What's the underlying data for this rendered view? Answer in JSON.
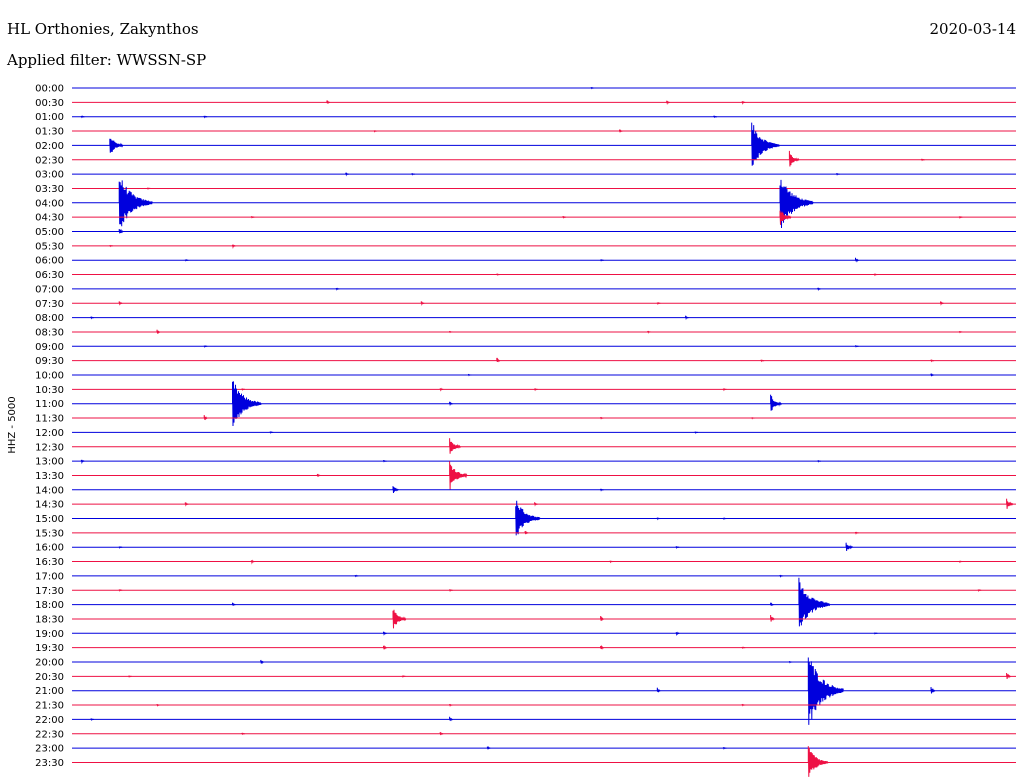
{
  "header": {
    "title": "HL Orthonies, Zakynthos",
    "date": "2020-03-14",
    "filter": "Applied filter: WWSSN-SP"
  },
  "chart_data": {
    "type": "line",
    "ylabel": "HHZ - 5000",
    "colors": [
      "#0000dd",
      "#ee1144"
    ],
    "rows": [
      {
        "label": "00:00",
        "events": [
          {
            "x": 0.55,
            "a": 1
          }
        ]
      },
      {
        "label": "00:30",
        "events": [
          {
            "x": 0.27,
            "a": 2
          },
          {
            "x": 0.63,
            "a": 2
          },
          {
            "x": 0.71,
            "a": 1.5
          }
        ]
      },
      {
        "label": "01:00",
        "events": [
          {
            "x": 0.01,
            "a": 1
          },
          {
            "x": 0.14,
            "a": 1
          },
          {
            "x": 0.68,
            "a": 1
          }
        ]
      },
      {
        "label": "01:30",
        "events": [
          {
            "x": 0.32,
            "a": 1
          },
          {
            "x": 0.58,
            "a": 2
          }
        ]
      },
      {
        "label": "02:00",
        "events": [
          {
            "x": 0.04,
            "a": 12
          },
          {
            "x": 0.72,
            "a": 25
          }
        ]
      },
      {
        "label": "02:30",
        "events": [
          {
            "x": 0.76,
            "a": 9
          },
          {
            "x": 0.9,
            "a": 1
          }
        ]
      },
      {
        "label": "03:00",
        "events": [
          {
            "x": 0.29,
            "a": 1.5
          },
          {
            "x": 0.36,
            "a": 1
          },
          {
            "x": 0.81,
            "a": 1
          }
        ]
      },
      {
        "label": "03:30",
        "events": [
          {
            "x": 0.08,
            "a": 1
          }
        ]
      },
      {
        "label": "04:00",
        "events": [
          {
            "x": 0.05,
            "a": 30
          },
          {
            "x": 0.75,
            "a": 30
          }
        ]
      },
      {
        "label": "04:30",
        "events": [
          {
            "x": 0.19,
            "a": 1
          },
          {
            "x": 0.52,
            "a": 1
          },
          {
            "x": 0.75,
            "a": 10
          },
          {
            "x": 0.94,
            "a": 1
          }
        ]
      },
      {
        "label": "05:00",
        "events": [
          {
            "x": 0.05,
            "a": 4
          }
        ]
      },
      {
        "label": "05:30",
        "events": [
          {
            "x": 0.04,
            "a": 1
          },
          {
            "x": 0.17,
            "a": 2
          }
        ]
      },
      {
        "label": "06:00",
        "events": [
          {
            "x": 0.12,
            "a": 1
          },
          {
            "x": 0.56,
            "a": 1
          },
          {
            "x": 0.83,
            "a": 3
          }
        ]
      },
      {
        "label": "06:30",
        "events": [
          {
            "x": 0.45,
            "a": 1
          },
          {
            "x": 0.85,
            "a": 1
          }
        ]
      },
      {
        "label": "07:00",
        "events": [
          {
            "x": 0.28,
            "a": 1
          },
          {
            "x": 0.79,
            "a": 1.5
          }
        ]
      },
      {
        "label": "07:30",
        "events": [
          {
            "x": 0.05,
            "a": 2
          },
          {
            "x": 0.37,
            "a": 2
          },
          {
            "x": 0.62,
            "a": 1
          },
          {
            "x": 0.92,
            "a": 2
          }
        ]
      },
      {
        "label": "08:00",
        "events": [
          {
            "x": 0.02,
            "a": 1
          },
          {
            "x": 0.65,
            "a": 2
          }
        ]
      },
      {
        "label": "08:30",
        "events": [
          {
            "x": 0.09,
            "a": 3
          },
          {
            "x": 0.4,
            "a": 1
          },
          {
            "x": 0.61,
            "a": 1
          },
          {
            "x": 0.94,
            "a": 1
          }
        ]
      },
      {
        "label": "09:00",
        "events": [
          {
            "x": 0.14,
            "a": 1
          },
          {
            "x": 0.83,
            "a": 1
          }
        ]
      },
      {
        "label": "09:30",
        "events": [
          {
            "x": 0.45,
            "a": 3
          },
          {
            "x": 0.73,
            "a": 1
          },
          {
            "x": 0.91,
            "a": 1
          }
        ]
      },
      {
        "label": "10:00",
        "events": [
          {
            "x": 0.42,
            "a": 1
          },
          {
            "x": 0.91,
            "a": 2
          }
        ]
      },
      {
        "label": "10:30",
        "events": [
          {
            "x": 0.18,
            "a": 1
          },
          {
            "x": 0.39,
            "a": 1.5
          },
          {
            "x": 0.49,
            "a": 1
          },
          {
            "x": 0.69,
            "a": 1
          }
        ]
      },
      {
        "label": "11:00",
        "events": [
          {
            "x": 0.17,
            "a": 26
          },
          {
            "x": 0.4,
            "a": 2
          },
          {
            "x": 0.74,
            "a": 10
          }
        ]
      },
      {
        "label": "11:30",
        "events": [
          {
            "x": 0.14,
            "a": 3
          },
          {
            "x": 0.56,
            "a": 1
          },
          {
            "x": 0.72,
            "a": 1
          }
        ]
      },
      {
        "label": "12:00",
        "events": [
          {
            "x": 0.21,
            "a": 1
          },
          {
            "x": 0.66,
            "a": 1
          }
        ]
      },
      {
        "label": "12:30",
        "events": [
          {
            "x": 0.4,
            "a": 10
          }
        ]
      },
      {
        "label": "13:00",
        "events": [
          {
            "x": 0.01,
            "a": 2
          },
          {
            "x": 0.33,
            "a": 1
          },
          {
            "x": 0.79,
            "a": 1
          }
        ]
      },
      {
        "label": "13:30",
        "events": [
          {
            "x": 0.26,
            "a": 2
          },
          {
            "x": 0.4,
            "a": 16
          }
        ]
      },
      {
        "label": "14:00",
        "events": [
          {
            "x": 0.34,
            "a": 5
          },
          {
            "x": 0.56,
            "a": 1
          }
        ]
      },
      {
        "label": "14:30",
        "events": [
          {
            "x": 0.12,
            "a": 2
          },
          {
            "x": 0.49,
            "a": 2
          },
          {
            "x": 0.99,
            "a": 6
          }
        ]
      },
      {
        "label": "15:00",
        "events": [
          {
            "x": 0.47,
            "a": 22
          },
          {
            "x": 0.62,
            "a": 1
          },
          {
            "x": 0.69,
            "a": 1
          }
        ]
      },
      {
        "label": "15:30",
        "events": [
          {
            "x": 0.48,
            "a": 2
          },
          {
            "x": 0.83,
            "a": 1
          }
        ]
      },
      {
        "label": "16:00",
        "events": [
          {
            "x": 0.05,
            "a": 1
          },
          {
            "x": 0.64,
            "a": 1
          },
          {
            "x": 0.82,
            "a": 6
          }
        ]
      },
      {
        "label": "16:30",
        "events": [
          {
            "x": 0.19,
            "a": 2
          },
          {
            "x": 0.57,
            "a": 1
          },
          {
            "x": 0.94,
            "a": 1
          }
        ]
      },
      {
        "label": "17:00",
        "events": [
          {
            "x": 0.3,
            "a": 1
          },
          {
            "x": 0.75,
            "a": 1
          }
        ]
      },
      {
        "label": "17:30",
        "events": [
          {
            "x": 0.05,
            "a": 1
          },
          {
            "x": 0.4,
            "a": 1
          },
          {
            "x": 0.96,
            "a": 1
          }
        ]
      },
      {
        "label": "18:00",
        "events": [
          {
            "x": 0.17,
            "a": 2
          },
          {
            "x": 0.74,
            "a": 2
          },
          {
            "x": 0.77,
            "a": 28
          }
        ]
      },
      {
        "label": "18:30",
        "events": [
          {
            "x": 0.34,
            "a": 12
          },
          {
            "x": 0.56,
            "a": 3
          },
          {
            "x": 0.74,
            "a": 4
          }
        ]
      },
      {
        "label": "19:00",
        "events": [
          {
            "x": 0.33,
            "a": 2
          },
          {
            "x": 0.64,
            "a": 2
          },
          {
            "x": 0.85,
            "a": 1
          }
        ]
      },
      {
        "label": "19:30",
        "events": [
          {
            "x": 0.33,
            "a": 3
          },
          {
            "x": 0.56,
            "a": 3
          },
          {
            "x": 0.71,
            "a": 1
          }
        ]
      },
      {
        "label": "20:00",
        "events": [
          {
            "x": 0.2,
            "a": 3
          },
          {
            "x": 0.76,
            "a": 1
          }
        ]
      },
      {
        "label": "20:30",
        "events": [
          {
            "x": 0.06,
            "a": 1
          },
          {
            "x": 0.35,
            "a": 1
          },
          {
            "x": 0.99,
            "a": 4
          }
        ]
      },
      {
        "label": "21:00",
        "events": [
          {
            "x": 0.78,
            "a": 40
          },
          {
            "x": 0.62,
            "a": 3
          },
          {
            "x": 0.91,
            "a": 4
          }
        ]
      },
      {
        "label": "21:30",
        "events": [
          {
            "x": 0.09,
            "a": 1
          },
          {
            "x": 0.4,
            "a": 1
          },
          {
            "x": 0.71,
            "a": 1
          }
        ]
      },
      {
        "label": "22:00",
        "events": [
          {
            "x": 0.4,
            "a": 3
          },
          {
            "x": 0.02,
            "a": 1
          }
        ]
      },
      {
        "label": "22:30",
        "events": [
          {
            "x": 0.39,
            "a": 2
          },
          {
            "x": 0.18,
            "a": 1
          }
        ]
      },
      {
        "label": "23:00",
        "events": [
          {
            "x": 0.44,
            "a": 2
          },
          {
            "x": 0.69,
            "a": 1
          }
        ]
      },
      {
        "label": "23:30",
        "events": [
          {
            "x": 0.78,
            "a": 18
          }
        ]
      }
    ]
  }
}
